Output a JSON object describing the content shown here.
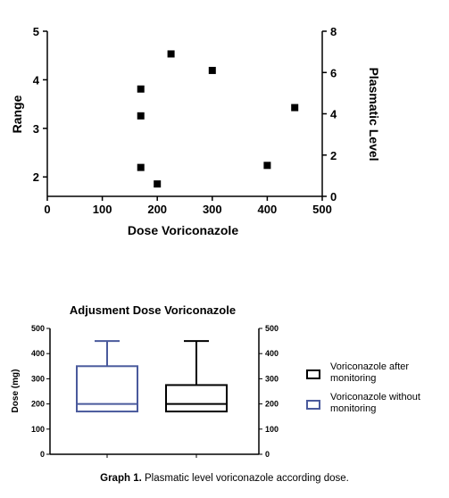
{
  "chart_data": [
    {
      "type": "scatter",
      "title": "",
      "xlabel": "Dose Voriconazole",
      "ylabel": "Range",
      "y2label": "Plasmatic Level",
      "xlim": [
        0,
        500
      ],
      "ylim": [
        1.6,
        5
      ],
      "y2lim": [
        0,
        8
      ],
      "x_ticks": [
        "0",
        "100",
        "200",
        "300",
        "400",
        "500"
      ],
      "y_ticks": [
        "2",
        "3",
        "4",
        "5"
      ],
      "y2_ticks": [
        "0",
        "2",
        "4",
        "6",
        "8"
      ],
      "points": [
        {
          "x": 170,
          "y2": 5.2
        },
        {
          "x": 170,
          "y2": 3.9
        },
        {
          "x": 170,
          "y2": 1.4
        },
        {
          "x": 200,
          "y2": 0.6
        },
        {
          "x": 225,
          "y2": 6.9
        },
        {
          "x": 300,
          "y2": 6.1
        },
        {
          "x": 400,
          "y2": 1.5
        },
        {
          "x": 450,
          "y2": 4.3
        }
      ],
      "grid": false,
      "colors": {
        "marker": "#000000"
      }
    },
    {
      "type": "box",
      "title": "Adjusment Dose Voriconazole",
      "ylabel": "Dose (mg)",
      "ylim": [
        0,
        500
      ],
      "y_ticks": [
        "0",
        "100",
        "200",
        "300",
        "400",
        "500"
      ],
      "y2_ticks": [
        "0",
        "100",
        "200",
        "300",
        "400",
        "500"
      ],
      "series": [
        {
          "name": "Voriconazole without monitoring",
          "color": "#4a5a9c",
          "whisker_low": 170,
          "q1": 170,
          "median": 200,
          "q3": 350,
          "whisker_high": 450
        },
        {
          "name": "Voriconazole after monitoring",
          "color": "#000000",
          "whisker_low": 170,
          "q1": 170,
          "median": 200,
          "q3": 275,
          "whisker_high": 450
        }
      ],
      "legend": [
        "Voriconazole after monitoring",
        "Voriconazole without monitoring"
      ],
      "legend_lines": [
        [
          "Voriconazole after",
          "monitoring"
        ],
        [
          "Voriconazole without",
          "monitoring"
        ]
      ],
      "legend_position": "right"
    }
  ],
  "caption": {
    "label": "Graph 1.",
    "text": " Plasmatic level voriconazole according dose."
  }
}
